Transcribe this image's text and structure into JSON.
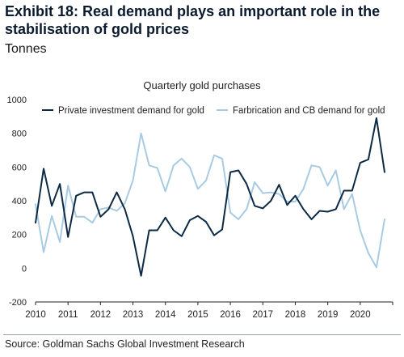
{
  "header": {
    "title": "Exhibit 18: Real demand plays an important role in the stabilisation of gold prices",
    "subtitle": "Tonnes"
  },
  "footer": {
    "source": "Source: Goldman Sachs Global Investment Research"
  },
  "colors": {
    "series_private": "#0d2a45",
    "series_fabrication": "#a8cbe3",
    "axis": "#222222"
  },
  "chart_data": {
    "type": "line",
    "title": "Quarterly gold purchases",
    "xlabel": "",
    "ylabel": "",
    "ylim": [
      -200,
      1000
    ],
    "xlim": [
      2010.0,
      2021.0
    ],
    "yticks": [
      -200,
      0,
      200,
      400,
      600,
      800,
      1000
    ],
    "xticks": [
      "2010",
      "2011",
      "2012",
      "2013",
      "2014",
      "2015",
      "2016",
      "2017",
      "2018",
      "2019",
      "2020"
    ],
    "grid": false,
    "legend_position": "top",
    "x": [
      2010.0,
      2010.25,
      2010.5,
      2010.75,
      2011.0,
      2011.25,
      2011.5,
      2011.75,
      2012.0,
      2012.25,
      2012.5,
      2012.75,
      2013.0,
      2013.25,
      2013.5,
      2013.75,
      2014.0,
      2014.25,
      2014.5,
      2014.75,
      2015.0,
      2015.25,
      2015.5,
      2015.75,
      2016.0,
      2016.25,
      2016.5,
      2016.75,
      2017.0,
      2017.25,
      2017.5,
      2017.75,
      2018.0,
      2018.25,
      2018.5,
      2018.75,
      2019.0,
      2019.25,
      2019.5,
      2019.75,
      2020.0,
      2020.25,
      2020.5,
      2020.75
    ],
    "series": [
      {
        "name": "Private investment demand for gold",
        "values": [
          270,
          590,
          370,
          500,
          185,
          430,
          450,
          450,
          305,
          350,
          450,
          350,
          190,
          -45,
          225,
          225,
          300,
          225,
          190,
          285,
          310,
          275,
          195,
          230,
          570,
          580,
          500,
          370,
          355,
          400,
          495,
          375,
          430,
          350,
          290,
          340,
          335,
          350,
          460,
          460,
          625,
          645,
          890,
          570
        ]
      },
      {
        "name": "Farbrication and CB demand for gold",
        "values": [
          380,
          95,
          310,
          155,
          490,
          305,
          305,
          270,
          350,
          360,
          340,
          385,
          520,
          800,
          610,
          595,
          455,
          610,
          650,
          600,
          470,
          520,
          670,
          650,
          330,
          290,
          350,
          510,
          445,
          450,
          440,
          395,
          395,
          470,
          610,
          600,
          490,
          580,
          350,
          440,
          225,
          90,
          5,
          290
        ]
      }
    ]
  }
}
